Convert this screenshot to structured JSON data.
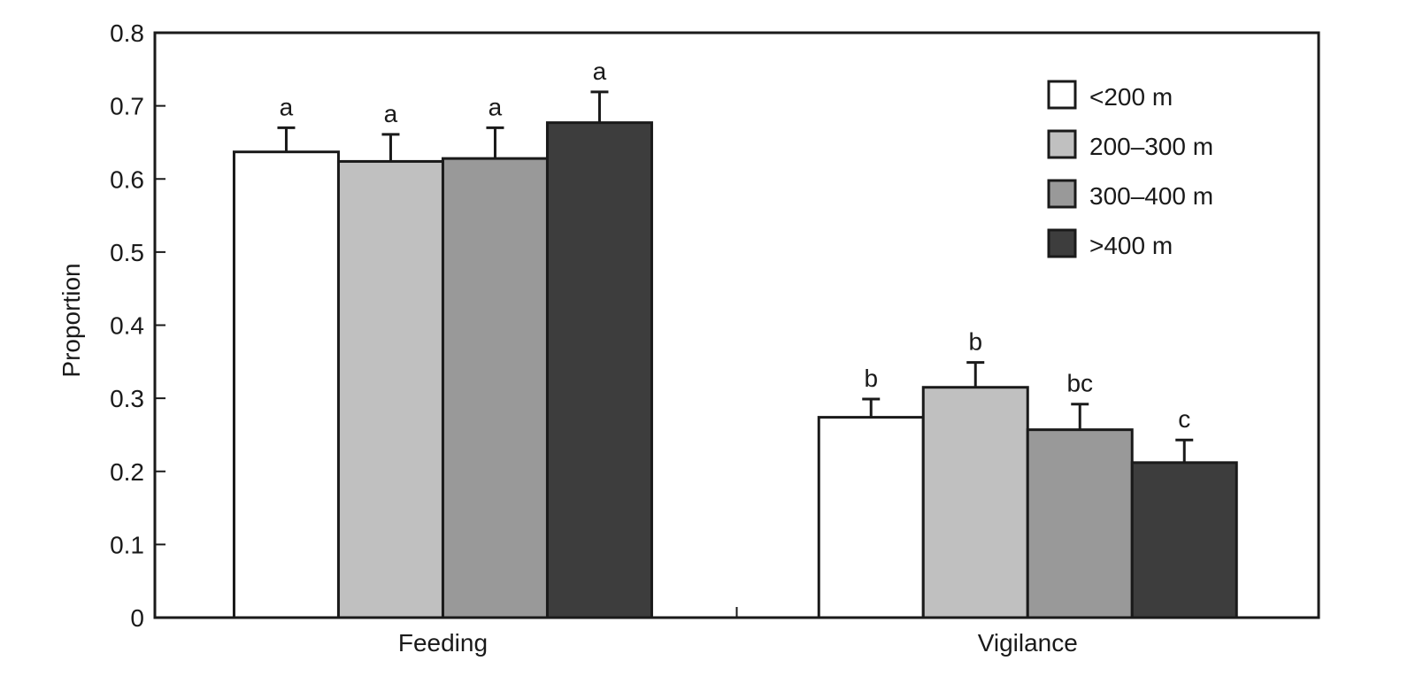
{
  "chart_data": {
    "type": "bar",
    "title": "",
    "xlabel": "",
    "ylabel": "Proportion",
    "ylim": [
      0,
      0.8
    ],
    "yticks": [
      "0",
      "0.1",
      "0.2",
      "0.3",
      "0.4",
      "0.5",
      "0.6",
      "0.7",
      "0.8"
    ],
    "categories": [
      "Feeding",
      "Vigilance"
    ],
    "series": [
      {
        "name": "<200 m",
        "color": "#ffffff",
        "values": [
          0.637,
          0.274
        ],
        "errors": [
          0.033,
          0.025
        ],
        "letters": [
          "a",
          "b"
        ]
      },
      {
        "name": "200–300 m",
        "color": "#c0c0c0",
        "values": [
          0.624,
          0.315
        ],
        "errors": [
          0.037,
          0.034
        ],
        "letters": [
          "a",
          "b"
        ]
      },
      {
        "name": "300–400 m",
        "color": "#999999",
        "values": [
          0.628,
          0.257
        ],
        "errors": [
          0.042,
          0.035
        ],
        "letters": [
          "a",
          "bc"
        ]
      },
      {
        "name": ">400 m",
        "color": "#3d3d3d",
        "values": [
          0.677,
          0.212
        ],
        "errors": [
          0.042,
          0.031
        ],
        "letters": [
          "a",
          "c"
        ]
      }
    ],
    "grid": false,
    "legend_position": "top-right"
  }
}
